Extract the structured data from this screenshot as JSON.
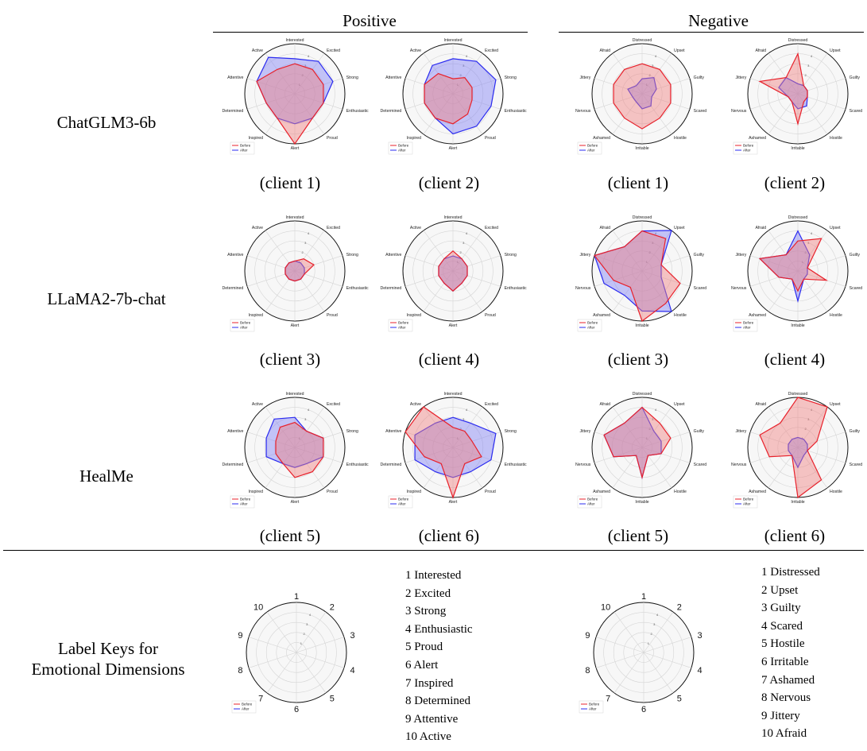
{
  "headers": {
    "positive": "Positive",
    "negative": "Negative"
  },
  "row_labels": [
    "ChatGLM3-6b",
    "LLaMA2-7b-chat",
    "HealMe"
  ],
  "key_label_line1": "Label Keys for",
  "key_label_line2": "Emotional Dimensions",
  "captions": {
    "r0": [
      "(client 1)",
      "(client 2)",
      "(client 1)",
      "(client 2)"
    ],
    "r1": [
      "(client 3)",
      "(client 4)",
      "(client 3)",
      "(client 4)"
    ],
    "r2": [
      "(client 5)",
      "(client 6)",
      "(client 5)",
      "(client 6)"
    ]
  },
  "legend": {
    "before": "Before",
    "after": "After"
  },
  "colors": {
    "before": "#e8212b",
    "after": "#2b2bf0",
    "before_fill": "#f08080",
    "after_fill": "#8080f5"
  },
  "positive_keys": [
    "1 Interested",
    "2 Excited",
    "3 Strong",
    "4 Enthusiastic",
    "5 Proud",
    "6 Alert",
    "7 Inspired",
    "8 Determined",
    "9 Attentive",
    "10 Active"
  ],
  "negative_keys": [
    "1 Distressed",
    "2 Upset",
    "3 Guilty",
    "4 Scared",
    "5 Hostile",
    "6 Irritable",
    "7 Ashamed",
    "8 Nervous",
    "9 Jittery",
    "10 Afraid"
  ],
  "chart_data": {
    "type": "radar",
    "radial_ticks": [
      "1",
      "2",
      "3",
      "4"
    ],
    "rmax": 5,
    "positive_axes": [
      "Interested",
      "Excited",
      "Strong",
      "Enthusiastic",
      "Proud",
      "Alert",
      "Inspired",
      "Determined",
      "Attentive",
      "Active"
    ],
    "negative_axes": [
      "Distressed",
      "Upset",
      "Guilty",
      "Scared",
      "Hostile",
      "Irritable",
      "Ashamed",
      "Nervous",
      "Jittery",
      "Afraid"
    ],
    "key_axes": [
      "1",
      "2",
      "3",
      "4",
      "5",
      "6",
      "7",
      "8",
      "9",
      "10"
    ],
    "charts": [
      {
        "id": "pos_c1",
        "group": "positive",
        "client": "client 1",
        "model": "ChatGLM3-6b",
        "before": [
          3,
          3,
          3,
          3,
          3,
          5,
          3,
          3,
          4,
          3
        ],
        "after": [
          3.5,
          4,
          4,
          3,
          3,
          3,
          3,
          3,
          4,
          4.5
        ]
      },
      {
        "id": "pos_c2",
        "group": "positive",
        "client": "client 2",
        "model": "ChatGLM3-6b",
        "before": [
          1.5,
          2,
          2,
          2,
          2.5,
          3,
          3,
          3,
          3,
          2.5
        ],
        "after": [
          3.5,
          4,
          4.5,
          4,
          4,
          4,
          3,
          3,
          3,
          3.5
        ]
      },
      {
        "id": "neg_c1",
        "group": "negative",
        "client": "client 1",
        "model": "ChatGLM3-6b",
        "before": [
          3,
          3,
          3,
          3,
          3,
          3.5,
          3,
          3,
          3,
          3
        ],
        "after": [
          1.5,
          2,
          1.5,
          1,
          1.5,
          1.5,
          1,
          1,
          1.5,
          1
        ]
      },
      {
        "id": "neg_c2",
        "group": "negative",
        "client": "client 2",
        "model": "ChatGLM3-6b",
        "before": [
          4,
          1,
          1,
          1,
          1,
          3,
          1,
          1,
          4,
          2
        ],
        "after": [
          1,
          1,
          1,
          1,
          1.5,
          1.5,
          1,
          1,
          2,
          2
        ]
      },
      {
        "id": "pos_c3",
        "group": "positive",
        "client": "client 3",
        "model": "LLaMA2-7b-chat",
        "before": [
          1,
          1.5,
          2,
          1,
          1,
          1,
          1,
          1,
          1,
          1
        ],
        "after": [
          1,
          1,
          1,
          1,
          1,
          1,
          1,
          1,
          1,
          1
        ]
      },
      {
        "id": "pos_c4",
        "group": "positive",
        "client": "client 4",
        "model": "LLaMA2-7b-chat",
        "before": [
          2,
          1.5,
          1.5,
          1.5,
          1.5,
          2,
          1.5,
          1.5,
          1.5,
          1.5
        ],
        "after": [
          1.5,
          1.5,
          1.5,
          1.5,
          1.5,
          2,
          1.5,
          1.5,
          1.5,
          1.5
        ]
      },
      {
        "id": "neg_c3",
        "group": "negative",
        "client": "client 3",
        "model": "LLaMA2-7b-chat",
        "before": [
          4,
          4,
          2,
          4,
          4,
          5,
          2,
          3,
          5,
          3
        ],
        "after": [
          4,
          5,
          2,
          2,
          5,
          4,
          3,
          4,
          5,
          3
        ]
      },
      {
        "id": "neg_c4",
        "group": "negative",
        "client": "client 4",
        "model": "LLaMA2-7b-chat",
        "before": [
          3,
          4,
          1,
          3,
          1,
          2,
          1,
          2,
          4,
          2
        ],
        "after": [
          4,
          2,
          1,
          1,
          1,
          3,
          1,
          2,
          4,
          2
        ]
      },
      {
        "id": "pos_c5",
        "group": "positive",
        "client": "client 5",
        "model": "HealMe",
        "before": [
          2.5,
          2,
          3,
          3,
          3,
          3,
          2,
          2,
          2,
          2.5
        ],
        "after": [
          3,
          2,
          3,
          3,
          2,
          2,
          2,
          3,
          3,
          3.5
        ]
      },
      {
        "id": "pos_c6",
        "group": "positive",
        "client": "client 6",
        "model": "HealMe",
        "before": [
          2,
          2,
          2,
          3,
          2,
          5,
          2,
          3,
          5,
          5
        ],
        "after": [
          3,
          3,
          4.5,
          4,
          3,
          3,
          3,
          4,
          4,
          3
        ]
      },
      {
        "id": "neg_c5",
        "group": "negative",
        "client": "client 5",
        "model": "HealMe",
        "before": [
          4,
          3,
          3,
          2,
          1,
          3,
          1,
          3,
          4,
          3
        ],
        "after": [
          4,
          2,
          2,
          2,
          1,
          3,
          1,
          3,
          4,
          3
        ]
      },
      {
        "id": "neg_c6",
        "group": "negative",
        "client": "client 6",
        "model": "HealMe",
        "before": [
          5,
          5,
          2,
          1,
          4,
          5,
          1,
          3,
          4,
          3
        ],
        "after": [
          1,
          1,
          1,
          1,
          1,
          2,
          1,
          1,
          1,
          1
        ]
      }
    ]
  }
}
